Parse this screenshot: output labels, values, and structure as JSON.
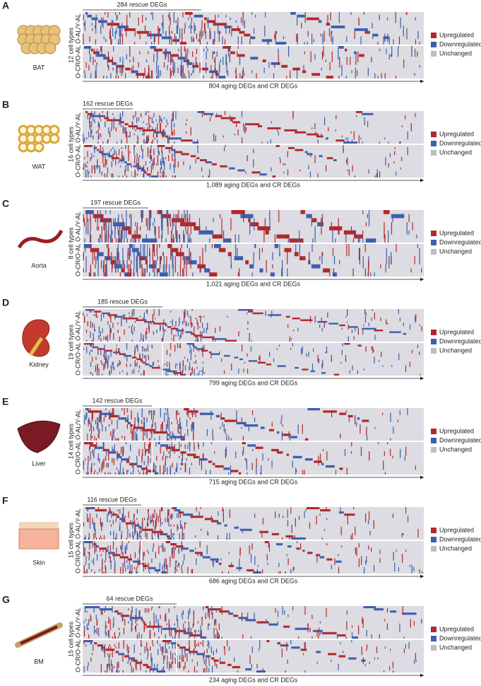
{
  "panels": [
    {
      "letter": "A",
      "tissue": "BAT",
      "cell_types": "12 cell types",
      "rescue_label": "284 rescue DEGs",
      "row_labels": [
        "O-AL/Y-AL",
        "O-CR/O-AL"
      ],
      "axis_label": "804 aging DEGs and CR DEGs"
    },
    {
      "letter": "B",
      "tissue": "WAT",
      "cell_types": "16 cell types",
      "rescue_label": "162 rescue DEGs",
      "row_labels": [
        "O-AL/Y-AL",
        "O-CR/O-AL"
      ],
      "axis_label": "1,089 aging DEGs and CR DEGs"
    },
    {
      "letter": "C",
      "tissue": "Aorta",
      "cell_types": "8 cell types",
      "rescue_label": "197 rescue DEGs",
      "row_labels": [
        "O-AL/Y-AL",
        "O-CR/O-AL"
      ],
      "axis_label": "1,021 aging DEGs and CR DEGs"
    },
    {
      "letter": "D",
      "tissue": "Kidney",
      "cell_types": "19 cell types",
      "rescue_label": "185 rescue DEGs",
      "row_labels": [
        "O-AL/Y-AL",
        "O-CR/O-AL"
      ],
      "axis_label": "799 aging DEGs and CR DEGs"
    },
    {
      "letter": "E",
      "tissue": "Liver",
      "cell_types": "14 cell types",
      "rescue_label": "142 rescue DEGs",
      "row_labels": [
        "O-AL/Y-AL",
        "O-CR/O-AL"
      ],
      "axis_label": "715 aging DEGs and CR DEGs"
    },
    {
      "letter": "F",
      "tissue": "Skin",
      "cell_types": "15 cell types",
      "rescue_label": "116 rescue DEGs",
      "row_labels": [
        "O-AL/Y-AL",
        "O-CR/O-AL"
      ],
      "axis_label": "686 aging DEGs and CR DEGs"
    },
    {
      "letter": "G",
      "tissue": "BM",
      "cell_types": "15 cell types",
      "rescue_label": "64 rescue DEGs",
      "row_labels": [
        "O-AL/Y-AL",
        "O-CR/O-AL"
      ],
      "axis_label": "234 aging DEGs and CR DEGs"
    }
  ],
  "legend": [
    "Upregulated",
    "Downregulated",
    "Unchanged"
  ]
}
